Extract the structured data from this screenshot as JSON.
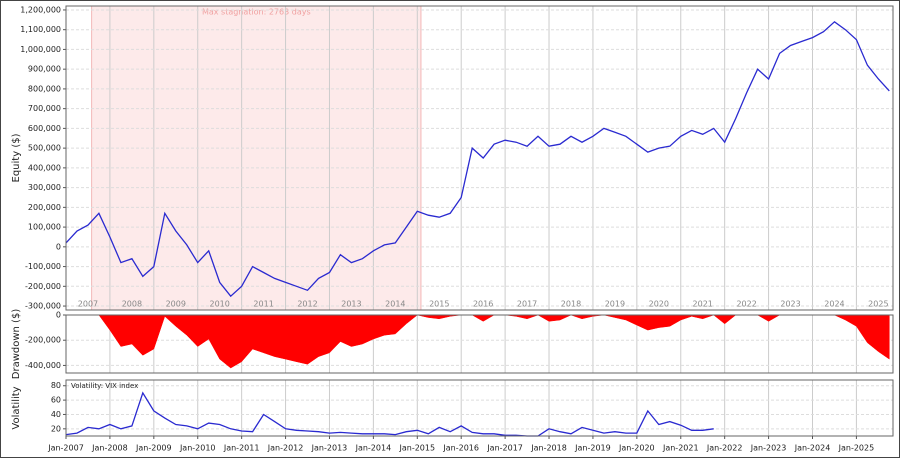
{
  "chart_data": [
    {
      "type": "line",
      "y_label": "Equity ($)",
      "color": "#2a2ad0",
      "annotation": "Max stagnation: 2763 days",
      "shade_span": [
        "2007-08",
        "2015-02"
      ],
      "xlim": [
        "2007-01",
        "2025-11"
      ],
      "year_labels": [
        "2007",
        "2008",
        "2009",
        "2010",
        "2011",
        "2012",
        "2013",
        "2014",
        "2015",
        "2016",
        "2017",
        "2018",
        "2019",
        "2020",
        "2021",
        "2022",
        "2023",
        "2024",
        "2025"
      ],
      "ylim": [
        -320000,
        1220000
      ],
      "yticks": [
        {
          "value": -300000,
          "label": "-300,000"
        },
        {
          "value": -200000,
          "label": "-200,000"
        },
        {
          "value": -100000,
          "label": "-100,000"
        },
        0,
        {
          "value": 100000,
          "label": "100,000"
        },
        {
          "value": 200000,
          "label": "200,000"
        },
        {
          "value": 300000,
          "label": "300,000"
        },
        {
          "value": 400000,
          "label": "400,000"
        },
        {
          "value": 500000,
          "label": "500,000"
        },
        {
          "value": 600000,
          "label": "600,000"
        },
        {
          "value": 700000,
          "label": "700,000"
        },
        {
          "value": 800000,
          "label": "800,000"
        },
        {
          "value": 900000,
          "label": "900,000"
        },
        {
          "value": 1000000,
          "label": "1,000,000"
        },
        {
          "value": 1100000,
          "label": "1,100,000"
        },
        {
          "value": 1200000,
          "label": "1,200,000"
        }
      ],
      "x": [
        "2007-01",
        "2007-04",
        "2007-07",
        "2007-10",
        "2008-01",
        "2008-04",
        "2008-07",
        "2008-10",
        "2009-01",
        "2009-04",
        "2009-07",
        "2009-10",
        "2010-01",
        "2010-04",
        "2010-07",
        "2010-10",
        "2011-01",
        "2011-04",
        "2011-07",
        "2011-10",
        "2012-01",
        "2012-04",
        "2012-07",
        "2012-10",
        "2013-01",
        "2013-04",
        "2013-07",
        "2013-10",
        "2014-01",
        "2014-04",
        "2014-07",
        "2014-10",
        "2015-01",
        "2015-04",
        "2015-07",
        "2015-10",
        "2016-01",
        "2016-04",
        "2016-07",
        "2016-10",
        "2017-01",
        "2017-04",
        "2017-07",
        "2017-10",
        "2018-01",
        "2018-04",
        "2018-07",
        "2018-10",
        "2019-01",
        "2019-04",
        "2019-07",
        "2019-10",
        "2020-01",
        "2020-04",
        "2020-07",
        "2020-10",
        "2021-01",
        "2021-04",
        "2021-07",
        "2021-10",
        "2022-01",
        "2022-04",
        "2022-07",
        "2022-10",
        "2023-01",
        "2023-04",
        "2023-07",
        "2023-10",
        "2024-01",
        "2024-04",
        "2024-07",
        "2024-10",
        "2025-01",
        "2025-04",
        "2025-07",
        "2025-10"
      ],
      "values": [
        20000,
        80000,
        110000,
        170000,
        50000,
        -80000,
        -60000,
        -150000,
        -100000,
        170000,
        80000,
        10000,
        -80000,
        -20000,
        -180000,
        -250000,
        -200000,
        -100000,
        -130000,
        -160000,
        -180000,
        -200000,
        -220000,
        -160000,
        -130000,
        -40000,
        -80000,
        -60000,
        -20000,
        10000,
        20000,
        100000,
        180000,
        160000,
        150000,
        170000,
        250000,
        500000,
        450000,
        520000,
        540000,
        530000,
        510000,
        560000,
        510000,
        520000,
        560000,
        530000,
        560000,
        600000,
        580000,
        560000,
        520000,
        480000,
        500000,
        510000,
        560000,
        590000,
        570000,
        600000,
        530000,
        650000,
        780000,
        900000,
        850000,
        980000,
        1020000,
        1040000,
        1060000,
        1090000,
        1140000,
        1100000,
        1050000,
        920000,
        850000,
        790000
      ]
    },
    {
      "type": "area",
      "y_label": "Drawdown ($)",
      "color": "#ff0000",
      "xlim": [
        "2007-01",
        "2025-11"
      ],
      "ylim": [
        -460000,
        0
      ],
      "yticks": [
        {
          "value": -400000,
          "label": "-400,000"
        },
        {
          "value": -200000,
          "label": "-200,000"
        },
        0
      ],
      "x": [
        "2007-01",
        "2007-04",
        "2007-07",
        "2007-10",
        "2008-01",
        "2008-04",
        "2008-07",
        "2008-10",
        "2009-01",
        "2009-04",
        "2009-07",
        "2009-10",
        "2010-01",
        "2010-04",
        "2010-07",
        "2010-10",
        "2011-01",
        "2011-04",
        "2011-07",
        "2011-10",
        "2012-01",
        "2012-04",
        "2012-07",
        "2012-10",
        "2013-01",
        "2013-04",
        "2013-07",
        "2013-10",
        "2014-01",
        "2014-04",
        "2014-07",
        "2014-10",
        "2015-01",
        "2015-04",
        "2015-07",
        "2015-10",
        "2016-01",
        "2016-04",
        "2016-07",
        "2016-10",
        "2017-01",
        "2017-04",
        "2017-07",
        "2017-10",
        "2018-01",
        "2018-04",
        "2018-07",
        "2018-10",
        "2019-01",
        "2019-04",
        "2019-07",
        "2019-10",
        "2020-01",
        "2020-04",
        "2020-07",
        "2020-10",
        "2021-01",
        "2021-04",
        "2021-07",
        "2021-10",
        "2022-01",
        "2022-04",
        "2022-07",
        "2022-10",
        "2023-01",
        "2023-04",
        "2023-07",
        "2023-10",
        "2024-01",
        "2024-04",
        "2024-07",
        "2024-10",
        "2025-01",
        "2025-04",
        "2025-07",
        "2025-10"
      ],
      "values": [
        0,
        0,
        0,
        0,
        -120000,
        -250000,
        -230000,
        -320000,
        -270000,
        -10000,
        -90000,
        -160000,
        -250000,
        -190000,
        -350000,
        -420000,
        -370000,
        -270000,
        -300000,
        -330000,
        -350000,
        -370000,
        -390000,
        -330000,
        -300000,
        -210000,
        -250000,
        -230000,
        -190000,
        -160000,
        -150000,
        -70000,
        0,
        -20000,
        -30000,
        -10000,
        0,
        0,
        -50000,
        0,
        0,
        -10000,
        -30000,
        0,
        -50000,
        -40000,
        0,
        -30000,
        -10000,
        0,
        -20000,
        -40000,
        -80000,
        -120000,
        -100000,
        -90000,
        -40000,
        -10000,
        -30000,
        0,
        -70000,
        0,
        0,
        0,
        -50000,
        0,
        0,
        0,
        0,
        0,
        0,
        -40000,
        -90000,
        -220000,
        -290000,
        -350000
      ]
    },
    {
      "type": "line",
      "y_label": "Volatility",
      "legend": "Volatility: VIX index",
      "color": "#2a2ad0",
      "xlim": [
        "2007-01",
        "2025-11"
      ],
      "ylim": [
        10,
        88
      ],
      "yticks": [
        20,
        40,
        60,
        80
      ],
      "xticks": [
        {
          "value": "2007-01",
          "label": "Jan-2007"
        },
        {
          "value": "2008-01",
          "label": "Jan-2008"
        },
        {
          "value": "2009-01",
          "label": "Jan-2009"
        },
        {
          "value": "2010-01",
          "label": "Jan-2010"
        },
        {
          "value": "2011-01",
          "label": "Jan-2011"
        },
        {
          "value": "2012-01",
          "label": "Jan-2012"
        },
        {
          "value": "2013-01",
          "label": "Jan-2013"
        },
        {
          "value": "2014-01",
          "label": "Jan-2014"
        },
        {
          "value": "2015-01",
          "label": "Jan-2015"
        },
        {
          "value": "2016-01",
          "label": "Jan-2016"
        },
        {
          "value": "2017-01",
          "label": "Jan-2017"
        },
        {
          "value": "2018-01",
          "label": "Jan-2018"
        },
        {
          "value": "2019-01",
          "label": "Jan-2019"
        },
        {
          "value": "2020-01",
          "label": "Jan-2020"
        },
        {
          "value": "2021-01",
          "label": "Jan-2021"
        },
        {
          "value": "2022-01",
          "label": "Jan-2022"
        },
        {
          "value": "2023-01",
          "label": "Jan-2023"
        },
        {
          "value": "2024-01",
          "label": "Jan-2024"
        },
        {
          "value": "2025-01",
          "label": "Jan-2025"
        }
      ],
      "x": [
        "2007-01",
        "2007-04",
        "2007-07",
        "2007-10",
        "2008-01",
        "2008-04",
        "2008-07",
        "2008-10",
        "2009-01",
        "2009-04",
        "2009-07",
        "2009-10",
        "2010-01",
        "2010-04",
        "2010-07",
        "2010-10",
        "2011-01",
        "2011-04",
        "2011-07",
        "2011-10",
        "2012-01",
        "2012-04",
        "2012-07",
        "2012-10",
        "2013-01",
        "2013-04",
        "2013-07",
        "2013-10",
        "2014-01",
        "2014-04",
        "2014-07",
        "2014-10",
        "2015-01",
        "2015-04",
        "2015-07",
        "2015-10",
        "2016-01",
        "2016-04",
        "2016-07",
        "2016-10",
        "2017-01",
        "2017-04",
        "2017-07",
        "2017-10",
        "2018-01",
        "2018-04",
        "2018-07",
        "2018-10",
        "2019-01",
        "2019-04",
        "2019-07",
        "2019-10",
        "2020-01",
        "2020-04",
        "2020-07",
        "2020-10",
        "2021-01",
        "2021-04",
        "2021-07",
        "2021-10"
      ],
      "values": [
        12,
        14,
        22,
        20,
        26,
        20,
        24,
        70,
        45,
        35,
        26,
        24,
        20,
        28,
        26,
        20,
        17,
        16,
        40,
        30,
        20,
        18,
        17,
        16,
        14,
        15,
        14,
        13,
        13,
        13,
        12,
        16,
        18,
        13,
        22,
        16,
        24,
        15,
        13,
        13,
        11,
        11,
        10,
        10,
        20,
        16,
        13,
        22,
        18,
        14,
        16,
        14,
        14,
        45,
        26,
        30,
        25,
        18,
        18,
        20
      ]
    }
  ]
}
